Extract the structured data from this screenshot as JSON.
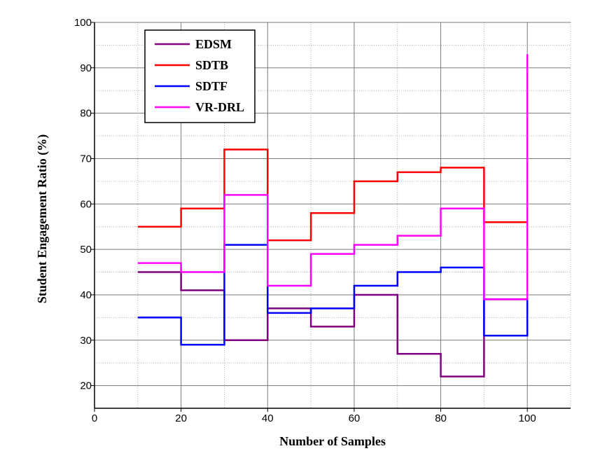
{
  "chart_data": {
    "type": "line",
    "step": true,
    "xlabel": "Number of Samples",
    "ylabel": "Student Engagement Ratio (%)",
    "xlim": [
      0,
      110
    ],
    "ylim": [
      15,
      100
    ],
    "xticks": [
      0,
      20,
      40,
      60,
      80,
      100
    ],
    "yticks": [
      20,
      30,
      40,
      50,
      60,
      70,
      80,
      90,
      100
    ],
    "grid": true,
    "legend_position": "top-left",
    "x": [
      10,
      20,
      30,
      40,
      50,
      60,
      70,
      80,
      90,
      100
    ],
    "series": [
      {
        "name": "EDSM",
        "color": "#800080",
        "values": [
          45,
          41,
          30,
          37,
          33,
          40,
          27,
          22,
          39,
          39
        ]
      },
      {
        "name": "SDTB",
        "color": "#ff0000",
        "values": [
          55,
          59,
          72,
          52,
          58,
          65,
          67,
          68,
          56,
          56
        ]
      },
      {
        "name": "SDTF",
        "color": "#0000ff",
        "values": [
          35,
          29,
          51,
          36,
          37,
          42,
          45,
          46,
          31,
          39
        ]
      },
      {
        "name": "VR-DRL",
        "color": "#ff00ff",
        "values": [
          47,
          45,
          62,
          42,
          49,
          51,
          53,
          59,
          39,
          93
        ]
      }
    ]
  }
}
